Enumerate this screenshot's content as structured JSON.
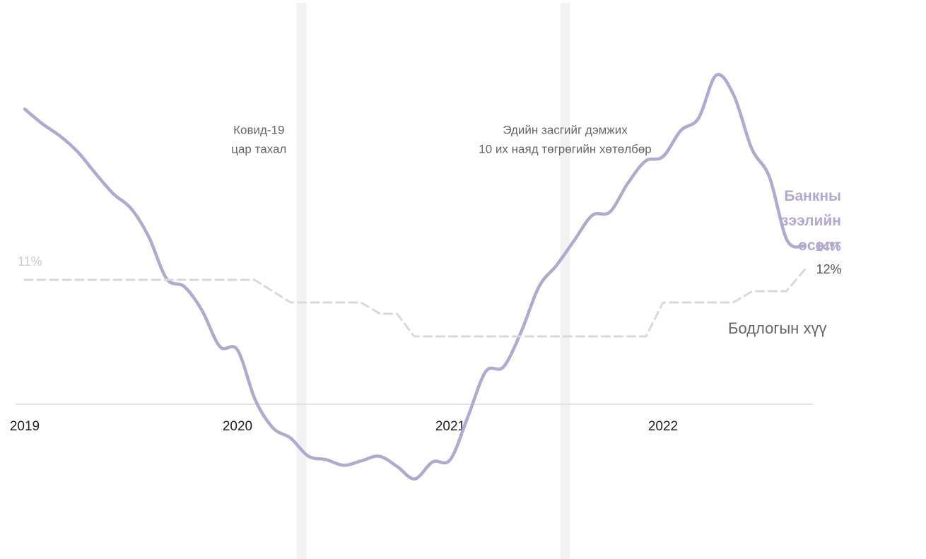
{
  "chart_data": {
    "type": "line",
    "xlim": [
      2019,
      2023
    ],
    "ylim": [
      -13,
      35
    ],
    "xticks": [
      2019,
      2020,
      2021,
      2022
    ],
    "annotations": [
      {
        "x": 2020.3,
        "lines": [
          "Ковид-19",
          "цар тахал"
        ]
      },
      {
        "x": 2021.54,
        "lines": [
          "Эдийн засгийг дэмжих",
          "10 их наяд төгрөгийн хөтөлбөр"
        ]
      }
    ],
    "series": [
      {
        "name": "Банкны зээлийн өсөлт",
        "color": "#b3a8cf",
        "style": "solid",
        "x": [
          2019.0,
          2019.083,
          2019.167,
          2019.25,
          2019.333,
          2019.417,
          2019.5,
          2019.583,
          2019.667,
          2019.75,
          2019.833,
          2019.917,
          2020.0,
          2020.083,
          2020.167,
          2020.25,
          2020.333,
          2020.417,
          2020.5,
          2020.583,
          2020.667,
          2020.75,
          2020.833,
          2020.917,
          2021.0,
          2021.083,
          2021.167,
          2021.25,
          2021.333,
          2021.417,
          2021.5,
          2021.583,
          2021.667,
          2021.75,
          2021.833,
          2021.917,
          2022.0,
          2022.083,
          2022.167,
          2022.25,
          2022.333,
          2022.417,
          2022.5,
          2022.583,
          2022.667
        ],
        "values": [
          26.1,
          24.8,
          23.7,
          22.3,
          20.4,
          18.6,
          17.3,
          14.8,
          11.1,
          10.4,
          8.3,
          5.1,
          4.8,
          0.4,
          -2.1,
          -3.0,
          -4.6,
          -4.9,
          -5.4,
          -5.0,
          -4.6,
          -5.5,
          -6.6,
          -5.1,
          -4.9,
          -1.1,
          2.9,
          3.3,
          6.4,
          10.4,
          12.3,
          14.5,
          16.7,
          17.0,
          19.5,
          21.5,
          21.9,
          24.2,
          25.3,
          29.1,
          27.3,
          22.6,
          20.1,
          14.5,
          14
        ],
        "value_labels": [
          null,
          null,
          null,
          null,
          null,
          null,
          null,
          null,
          null,
          null,
          null,
          null,
          null,
          null,
          null,
          null,
          null,
          null,
          null,
          null,
          null,
          null,
          null,
          null,
          null,
          null,
          null,
          null,
          null,
          null,
          null,
          null,
          null,
          null,
          null,
          null,
          null,
          null,
          null,
          null,
          null,
          null,
          null,
          null,
          "14%"
        ]
      },
      {
        "name": "Бодлогын хүү",
        "color": "#d9d9d9",
        "style": "dashed",
        "x": [
          2019.0,
          2020.08,
          2020.25,
          2020.58,
          2020.67,
          2020.75,
          2020.83,
          2021.92,
          2022.0,
          2022.33,
          2022.42,
          2022.58,
          2022.67
        ],
        "values": [
          11,
          11,
          9,
          9,
          8,
          8,
          6,
          6,
          9,
          9,
          10,
          10,
          12
        ],
        "value_labels": [
          "11%",
          null,
          null,
          null,
          null,
          null,
          null,
          null,
          null,
          null,
          null,
          null,
          "12%"
        ]
      }
    ]
  }
}
